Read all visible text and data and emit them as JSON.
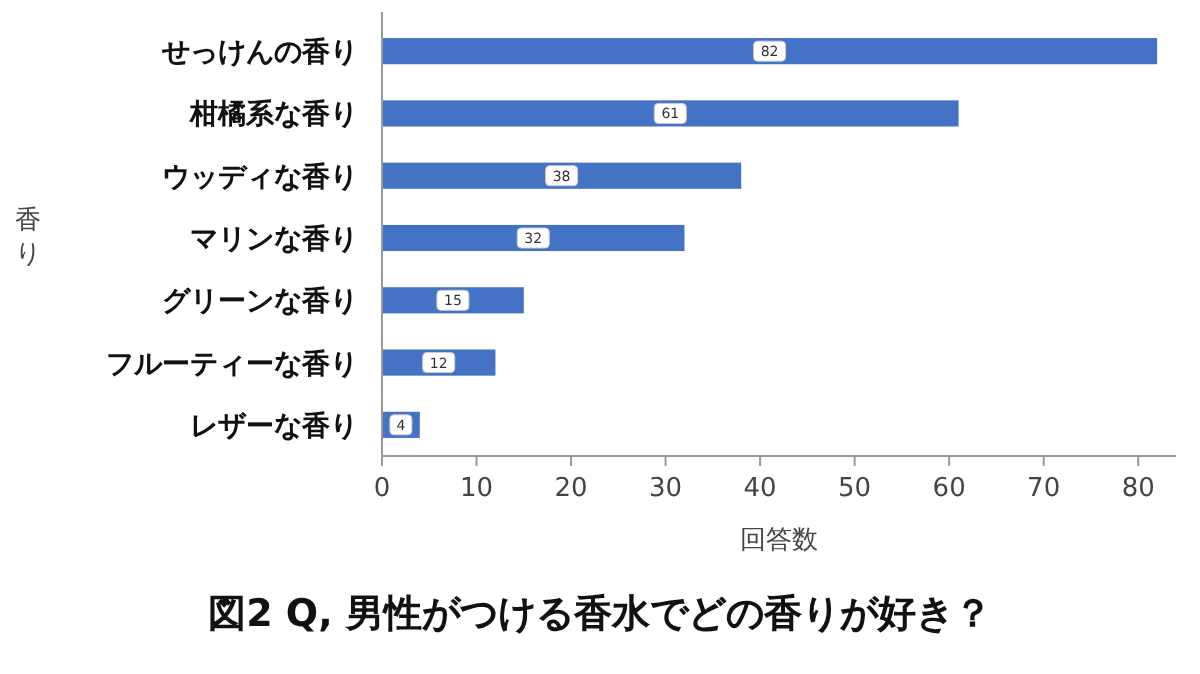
{
  "chart_data": {
    "type": "bar",
    "orientation": "horizontal",
    "title": "図2 Q, 男性がつける香水でどの香りが好き？",
    "xlabel": "回答数",
    "ylabel": "香り",
    "categories": [
      "せっけんの香り",
      "柑橘系な香り",
      "ウッディな香り",
      "マリンな香り",
      "グリーンな香り",
      "フルーティーな香り",
      "レザーな香り"
    ],
    "values": [
      82,
      61,
      38,
      32,
      15,
      12,
      4
    ],
    "color": "#4472c4",
    "data_labels": true,
    "xlim": [
      0,
      84
    ],
    "xticks": [
      0,
      10,
      20,
      30,
      40,
      50,
      60,
      70,
      80
    ],
    "grid": false
  }
}
